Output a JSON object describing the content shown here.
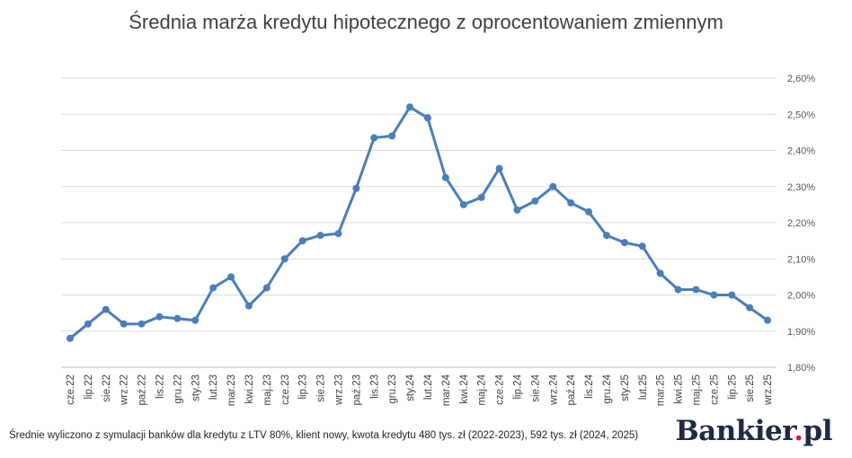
{
  "chart_data": {
    "type": "line",
    "title": "Średnia marża kredytu hipotecznego z oprocentowaniem zmiennym",
    "xlabel": "",
    "ylabel": "",
    "ylim": [
      1.8,
      2.6
    ],
    "y_ticks": [
      "1,80%",
      "1,90%",
      "2,00%",
      "2,10%",
      "2,20%",
      "2,30%",
      "2,40%",
      "2,50%",
      "2,60%"
    ],
    "y_tick_values": [
      1.8,
      1.9,
      2.0,
      2.1,
      2.2,
      2.3,
      2.4,
      2.5,
      2.6
    ],
    "grid": true,
    "categories": [
      "cze.22",
      "lip.22",
      "sie.22",
      "wrz.22",
      "paź.22",
      "lis.22",
      "gru.22",
      "sty.23",
      "lut.23",
      "mar.23",
      "kwi.23",
      "maj.23",
      "cze.23",
      "lip.23",
      "sie.23",
      "wrz.23",
      "paź.23",
      "lis.23",
      "gru.23",
      "sty.24",
      "lut.24",
      "mar.24",
      "kwi.24",
      "maj.24",
      "cze.24",
      "lip.24",
      "sie.24",
      "wrz.24",
      "paź.24",
      "lis.24",
      "gru.24",
      "sty.25",
      "lut.25",
      "mar.25",
      "kwi.25",
      "maj.25",
      "cze.25",
      "lip.25",
      "sie.25",
      "wrz.25"
    ],
    "series": [
      {
        "name": "",
        "color": "#4a7ebb",
        "values": [
          1.88,
          1.92,
          1.96,
          1.92,
          1.92,
          1.94,
          1.935,
          1.93,
          2.02,
          2.05,
          1.97,
          2.02,
          2.1,
          2.15,
          2.165,
          2.17,
          2.295,
          2.435,
          2.44,
          2.52,
          2.49,
          2.325,
          2.25,
          2.27,
          2.35,
          2.235,
          2.26,
          2.3,
          2.255,
          2.23,
          2.165,
          2.145,
          2.135,
          2.06,
          2.015,
          2.015,
          2.0,
          2.0,
          1.965,
          1.93
        ]
      }
    ]
  },
  "footnote": "Średnie wyliczono z symulacji banków dla kredytu z LTV 80%, klient nowy, kwota kredytu 480 tys. zł (2022-2023), 592 tys. zł (2024, 2025)",
  "logo": {
    "name": "Bankier",
    "dot": ".",
    "tld": "pl"
  }
}
